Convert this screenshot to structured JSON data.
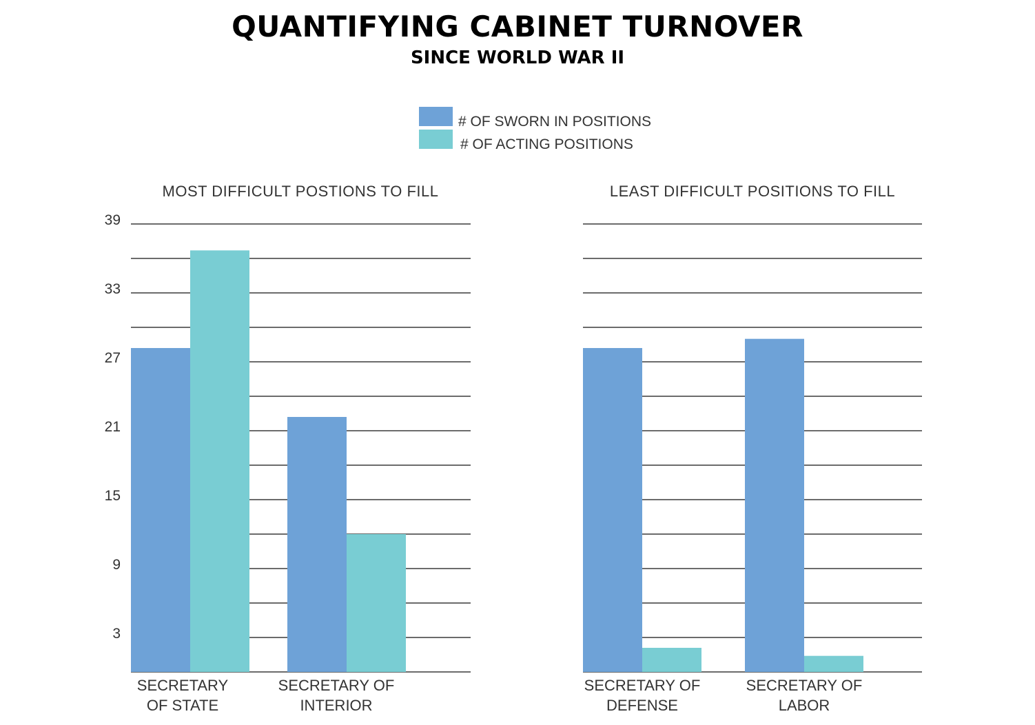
{
  "title": "QUANTIFYING CABINET TURNOVER",
  "subtitle": "SINCE WORLD WAR II",
  "legend": [
    {
      "label": "# OF SWORN IN POSITIONS",
      "color": "#6ea2d7"
    },
    {
      "label": "# OF ACTING POSITIONS",
      "color": "#79cdd3"
    }
  ],
  "chart_data": [
    {
      "type": "bar",
      "title": "MOST DIFFICULT POSTIONS TO FILL",
      "categories": [
        [
          "SECRETARY",
          "OF STATE"
        ],
        [
          "SECRETARY OF",
          "INTERIOR"
        ]
      ],
      "series": [
        {
          "name": "# OF SWORN IN POSITIONS",
          "values": [
            28.2,
            22.2
          ],
          "color": "#6ea2d7"
        },
        {
          "name": "# OF ACTING POSITIONS",
          "values": [
            36.7,
            12
          ]
        }
      ],
      "ylim": [
        0,
        39
      ],
      "yticks": [
        3,
        9,
        15,
        21,
        27,
        33,
        39
      ],
      "grid_step": 3,
      "grid": true
    },
    {
      "type": "bar",
      "title": "LEAST DIFFICULT POSITIONS TO FILL",
      "categories": [
        [
          "SECRETARY OF",
          "DEFENSE"
        ],
        [
          "SECRETARY OF",
          "LABOR"
        ]
      ],
      "series": [
        {
          "name": "# OF SWORN IN POSITIONS",
          "values": [
            28.2,
            29
          ]
        },
        {
          "name": "# OF ACTING POSITIONS",
          "values": [
            2.1,
            1.4
          ]
        }
      ],
      "ylim": [
        0,
        39
      ],
      "yticks": [],
      "grid_step": 3,
      "grid": true
    }
  ]
}
